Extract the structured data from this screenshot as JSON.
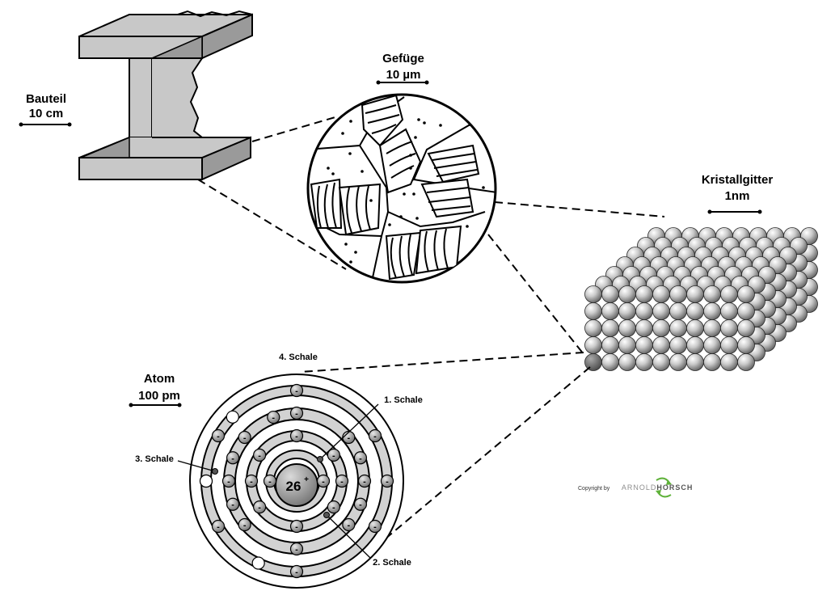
{
  "labels": {
    "bauteil": "Bauteil",
    "bauteil_scale": "10 cm",
    "gefuege": "Gefüge",
    "gefuege_scale": "10 µm",
    "kristallgitter": "Kristallgitter",
    "kristallgitter_scale": "1nm",
    "atom": "Atom",
    "atom_scale": "100 pm",
    "schale1": "1. Schale",
    "schale2": "2. Schale",
    "schale3": "3. Schale",
    "schale4": "4. Schale",
    "nucleus": "26",
    "nucleus_charge": "+",
    "electron_sign": "-"
  },
  "copyright": {
    "prefix": "Copyright by",
    "brand_part1": "ARNOLD",
    "brand_part2": "HORSCH"
  },
  "colors": {
    "beam_fill": "#c8c8c8",
    "beam_dark": "#9a9a9a",
    "shell_gray": "#d2d2d2",
    "electron": "#8a8a8a",
    "nucleus": "#8c8c8c",
    "logo_gray": "#8e8e8e",
    "logo_green": "#5fb23a"
  }
}
